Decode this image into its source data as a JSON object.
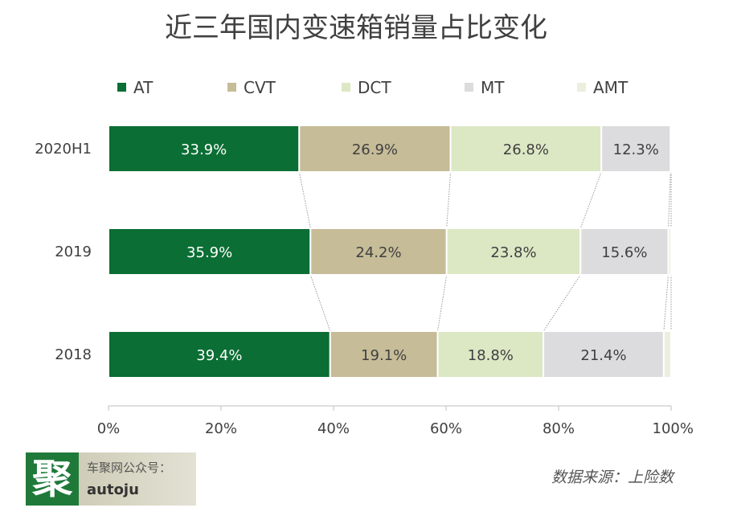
{
  "chart_data": {
    "type": "bar",
    "orientation": "horizontal-stacked-100",
    "title": "近三年国内变速箱销量占比变化",
    "categories": [
      "2020H1",
      "2019",
      "2018"
    ],
    "series": [
      {
        "name": "AT",
        "color": "#0b6e34",
        "label_color": "#ffffff",
        "values": [
          33.9,
          35.9,
          39.4
        ]
      },
      {
        "name": "CVT",
        "color": "#c6bc98",
        "label_color": "#404040",
        "values": [
          26.9,
          24.2,
          19.1
        ]
      },
      {
        "name": "DCT",
        "color": "#dce7c4",
        "label_color": "#404040",
        "values": [
          26.8,
          23.8,
          18.8
        ]
      },
      {
        "name": "MT",
        "color": "#dcdbdd",
        "label_color": "#404040",
        "values": [
          12.3,
          15.6,
          21.4
        ]
      },
      {
        "name": "AMT",
        "color": "#eeeedf",
        "label_color": "#404040",
        "values": [
          0.1,
          0.5,
          1.3
        ]
      }
    ],
    "value_labels": [
      [
        "33.9%",
        "26.9%",
        "26.8%",
        "12.3%",
        ""
      ],
      [
        "35.9%",
        "24.2%",
        "23.8%",
        "15.6%",
        ""
      ],
      [
        "39.4%",
        "19.1%",
        "18.8%",
        "21.4%",
        ""
      ]
    ],
    "xlim": [
      0,
      100
    ],
    "x_ticks": [
      0,
      20,
      40,
      60,
      80,
      100
    ],
    "x_tick_labels": [
      "0%",
      "20%",
      "40%",
      "60%",
      "80%",
      "100%"
    ],
    "legend_position": "top",
    "grid": false,
    "series_connector_lines": true
  },
  "branding": {
    "logo_char": "聚",
    "account_label": "车聚网公众号：",
    "account_id": "autoju"
  },
  "source_note": "数据来源：上险数"
}
